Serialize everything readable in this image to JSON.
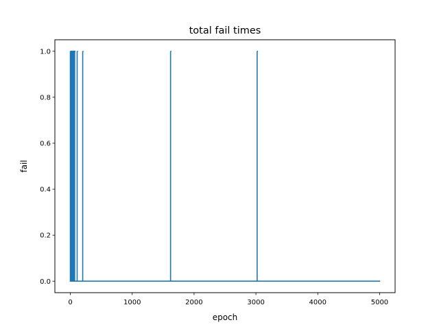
{
  "chart_data": {
    "type": "line",
    "title": "total fail times",
    "xlabel": "epoch",
    "ylabel": "fail",
    "xlim": [
      -250,
      5250
    ],
    "ylim": [
      -0.05,
      1.05
    ],
    "xticks": [
      0,
      1000,
      2000,
      3000,
      4000,
      5000
    ],
    "xtick_labels": [
      "0",
      "1000",
      "2000",
      "3000",
      "4000",
      "5000"
    ],
    "yticks": [
      0.0,
      0.2,
      0.4,
      0.6,
      0.8,
      1.0
    ],
    "ytick_labels": [
      "0.0",
      "0.2",
      "0.4",
      "0.6",
      "0.8",
      "1.0"
    ],
    "grid": false,
    "series": [
      {
        "color": "#1f77b4",
        "spike_epochs": [
          0,
          5,
          10,
          15,
          20,
          30,
          40,
          50,
          60,
          70,
          110,
          200,
          1620,
          3020
        ],
        "x_end": 5000,
        "baseline": 0,
        "spike_value": 1
      }
    ]
  }
}
